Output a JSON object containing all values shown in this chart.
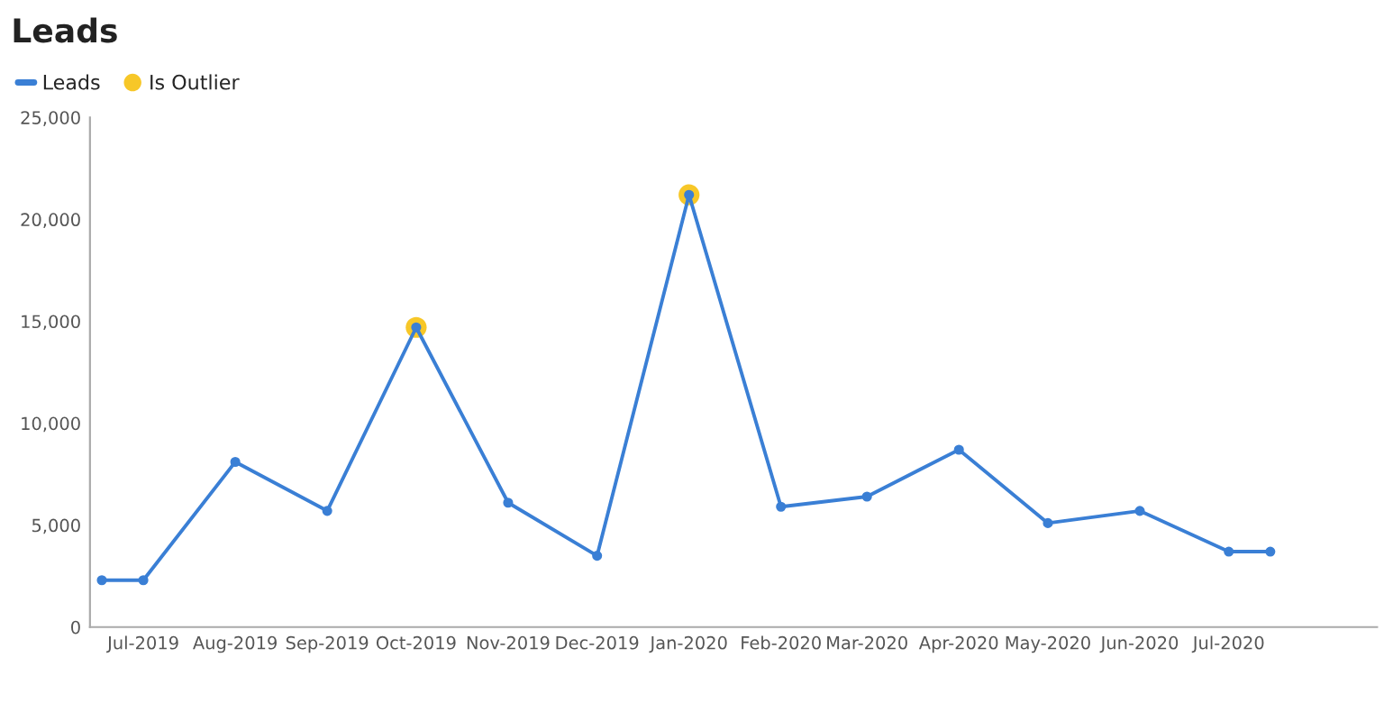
{
  "chart_data": {
    "type": "line",
    "title": "Leads",
    "xlim": [
      "2019-06-13",
      "2020-08-20"
    ],
    "xticks": [
      {
        "value": "2019-07-01",
        "label": "Jul-2019"
      },
      {
        "value": "2019-08-01",
        "label": "Aug-2019"
      },
      {
        "value": "2019-09-01",
        "label": "Sep-2019"
      },
      {
        "value": "2019-10-01",
        "label": "Oct-2019"
      },
      {
        "value": "2019-11-01",
        "label": "Nov-2019"
      },
      {
        "value": "2019-12-01",
        "label": "Dec-2019"
      },
      {
        "value": "2020-01-01",
        "label": "Jan-2020"
      },
      {
        "value": "2020-02-01",
        "label": "Feb-2020"
      },
      {
        "value": "2020-03-01",
        "label": "Mar-2020"
      },
      {
        "value": "2020-04-01",
        "label": "Apr-2020"
      },
      {
        "value": "2020-05-01",
        "label": "May-2020"
      },
      {
        "value": "2020-06-01",
        "label": "Jun-2020"
      },
      {
        "value": "2020-07-01",
        "label": "Jul-2020"
      }
    ],
    "ylim": [
      0,
      25000
    ],
    "yticks": [
      0,
      {
        "value": 5000,
        "label": "5,000"
      },
      {
        "value": 10000,
        "label": "10,000"
      },
      {
        "value": 15000,
        "label": "15,000"
      },
      {
        "value": 20000,
        "label": "20,000"
      },
      {
        "value": 25000,
        "label": "25,000"
      }
    ],
    "grid": false,
    "legend": "top left",
    "marker": "circle",
    "line_style": "solid",
    "series": [
      {
        "name": "Leads",
        "color": "#3a7fd5",
        "x": [
          "2019-06-17",
          "2019-07-01",
          "2019-08-01",
          "2019-09-01",
          "2019-10-01",
          "2019-11-01",
          "2019-12-01",
          "2020-01-01",
          "2020-02-01",
          "2020-03-01",
          "2020-04-01",
          "2020-05-01",
          "2020-06-01",
          "2020-07-01",
          "2020-07-15"
        ],
        "values": [
          2300,
          2300,
          8100,
          5700,
          14700,
          6100,
          3500,
          21200,
          5900,
          6400,
          8700,
          5100,
          5700,
          3700,
          3700
        ]
      },
      {
        "name": "Is Outlier",
        "type": "scatter",
        "color": "#f7c728",
        "x": [
          "2019-10-01",
          "2020-01-01"
        ],
        "values": [
          14700,
          21200
        ]
      }
    ]
  }
}
